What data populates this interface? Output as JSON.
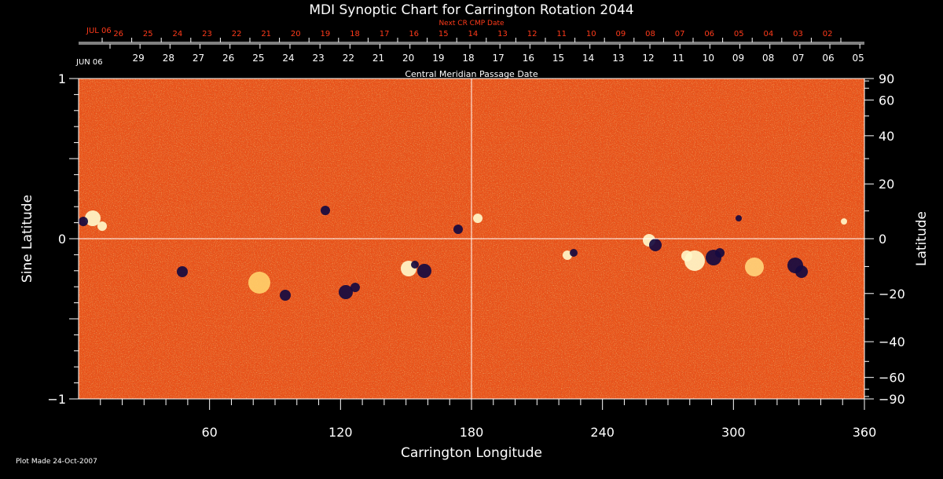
{
  "chart_data": {
    "type": "heatmap",
    "title": "MDI Synoptic Chart for Carrington Rotation 2044",
    "xlabel": "Carrington Longitude",
    "ylabel_left": "Sine Latitude",
    "ylabel_right": "Latitude",
    "xlim": [
      0,
      360
    ],
    "ylim": [
      -1,
      1
    ],
    "x_ticks": [
      60,
      120,
      180,
      240,
      300,
      360
    ],
    "y_ticks_left": [
      {
        "v": 1,
        "label": "1"
      },
      {
        "v": 0,
        "label": "0"
      },
      {
        "v": -1,
        "label": "−1"
      }
    ],
    "y_ticks_right": [
      90,
      60,
      40,
      20,
      0,
      -20,
      -40,
      -60,
      -90
    ],
    "y_tick_labels_right": [
      "90",
      "60",
      "40",
      "20",
      "0",
      "−20",
      "−40",
      "−60",
      "−90"
    ],
    "top_axis_title": "Central Meridian Passage Date",
    "top_axis_start_label": "JUN 06",
    "top_axis_dates": [
      "29",
      "28",
      "27",
      "26",
      "25",
      "24",
      "23",
      "22",
      "21",
      "20",
      "19",
      "18",
      "17",
      "16",
      "15",
      "14",
      "13",
      "12",
      "11",
      "10",
      "09",
      "08",
      "07",
      "06",
      "05"
    ],
    "next_cr_title": "Next CR CMP Date",
    "next_cr_start_label": "JUL 06",
    "next_cr_dates": [
      "26",
      "25",
      "24",
      "23",
      "22",
      "21",
      "20",
      "19",
      "18",
      "17",
      "16",
      "15",
      "14",
      "13",
      "12",
      "11",
      "10",
      "09",
      "08",
      "07",
      "06",
      "05",
      "04",
      "03",
      "02"
    ],
    "colors": {
      "background": "#000000",
      "field_base": "#e8521a",
      "negative": "#1a1050",
      "positive": "#fff3b0",
      "next_cr": "#ff3a1a",
      "grid": "#ffffff"
    }
  },
  "footer": {
    "plot_made": "Plot Made 24-Oct-2007"
  }
}
